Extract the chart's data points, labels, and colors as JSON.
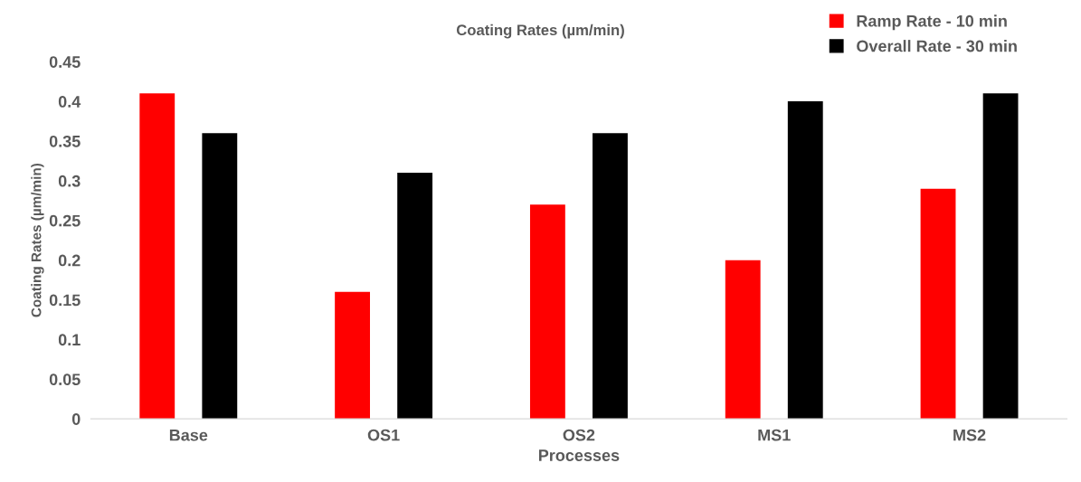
{
  "chart_data": {
    "type": "bar",
    "title": "Coating Rates (µm/min)",
    "xlabel": "Processes",
    "ylabel": "Coating Rates (µm/min)",
    "categories": [
      "Base",
      "OS1",
      "OS2",
      "MS1",
      "MS2"
    ],
    "series": [
      {
        "name": "Ramp Rate - 10 min",
        "color": "#ff0000",
        "values": [
          0.41,
          0.16,
          0.27,
          0.2,
          0.29
        ]
      },
      {
        "name": "Overall Rate - 30 min",
        "color": "#000000",
        "values": [
          0.36,
          0.31,
          0.36,
          0.4,
          0.41
        ]
      }
    ],
    "ylim": [
      0,
      0.45
    ],
    "yticks": [
      0,
      0.05,
      0.1,
      0.15,
      0.2,
      0.25,
      0.3,
      0.35,
      0.4,
      0.45
    ],
    "grid": false,
    "legend": "top right"
  }
}
